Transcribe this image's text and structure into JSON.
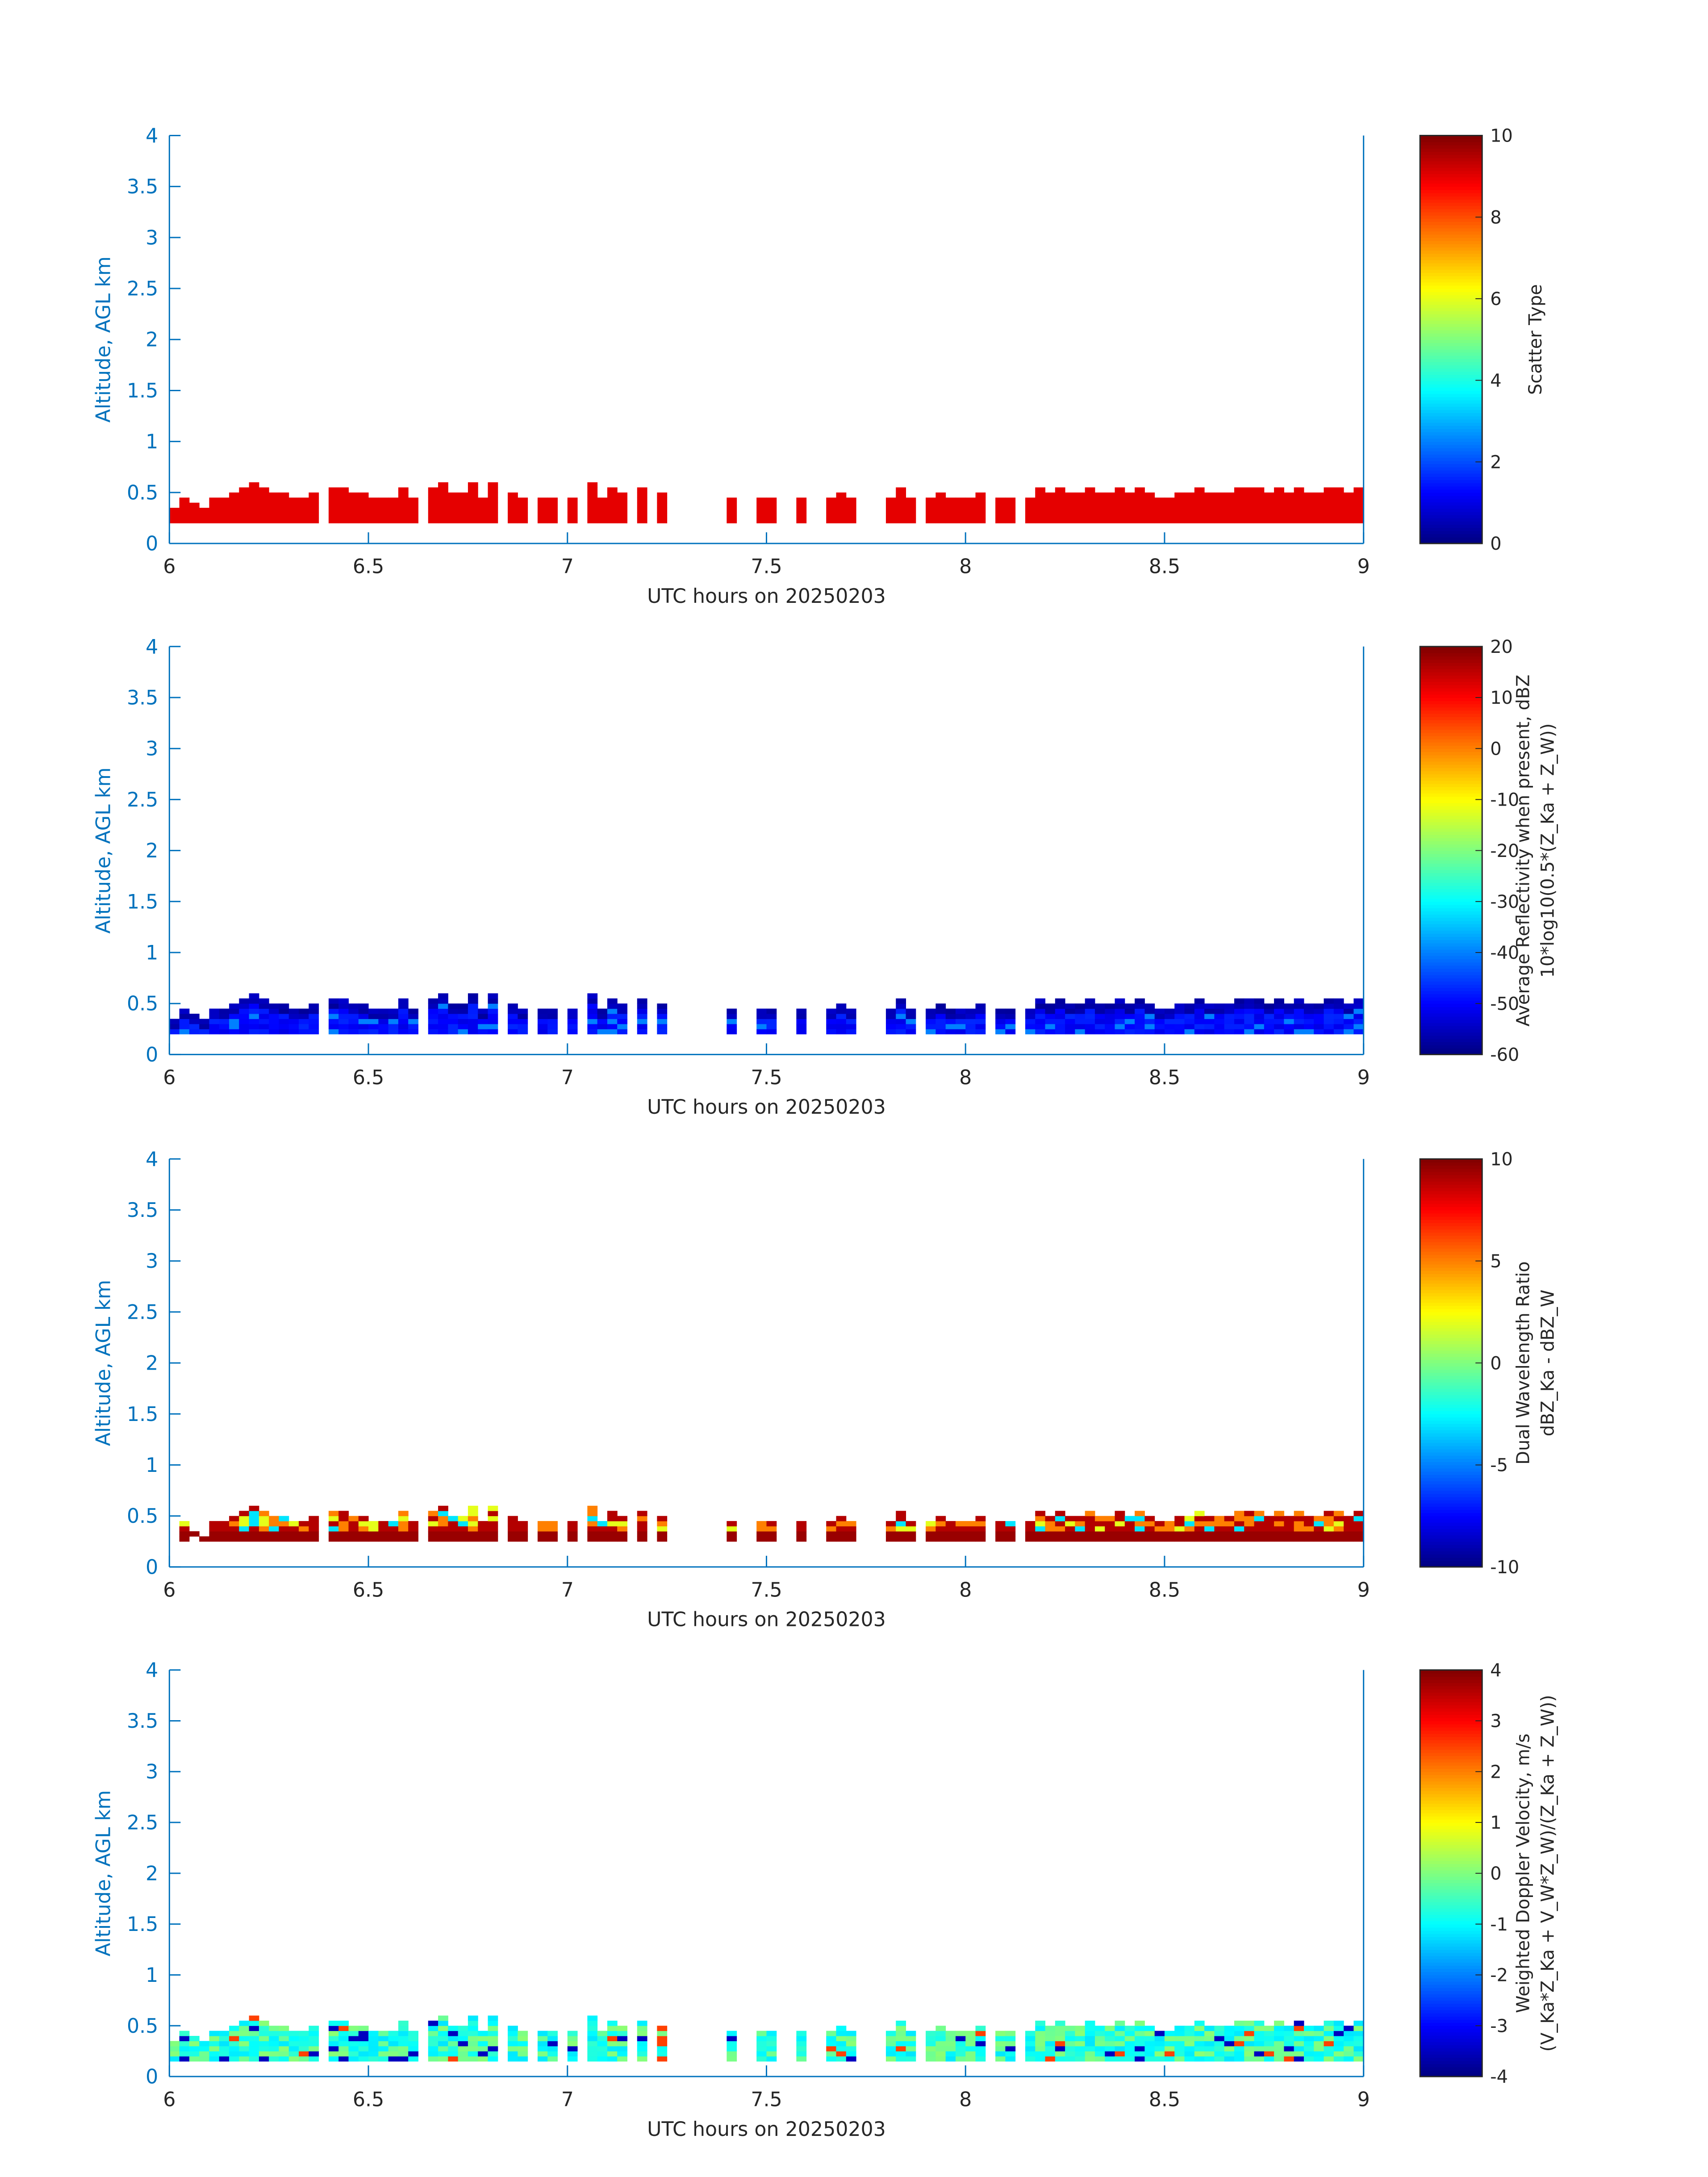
{
  "figure": {
    "axis_color": "#0072BD",
    "colorbar_text_color": "#262626",
    "xlabel": "UTC hours on 20250203",
    "ylabel": "Altitude, AGL km"
  },
  "chart_data": [
    {
      "type": "heatmap",
      "title": "",
      "xlabel": "UTC hours on 20250203",
      "ylabel": "Altitude, AGL km",
      "xlim": [
        6,
        9
      ],
      "ylim": [
        0,
        4
      ],
      "xticks": [
        6,
        6.5,
        7,
        7.5,
        8,
        8.5,
        9
      ],
      "xticklabels": [
        "6",
        "6.5",
        "7",
        "7.5",
        "8",
        "8.5",
        "9"
      ],
      "yticks": [
        0,
        0.5,
        1,
        1.5,
        2,
        2.5,
        3,
        3.5,
        4
      ],
      "yticklabels": [
        "0",
        "0.5",
        "1",
        "1.5",
        "2",
        "2.5",
        "3",
        "3.5",
        "4"
      ],
      "colormap": "jet",
      "clim": [
        0,
        10
      ],
      "colorbar": {
        "label_lines": [
          "Scatter Type"
        ],
        "ticks": [
          0,
          2,
          4,
          6,
          8,
          10
        ],
        "ticklabels": [
          "0",
          "2",
          "4",
          "6",
          "8",
          "10"
        ]
      },
      "field_summary": "constant value 9 in echo bins between ~0.2 and ~0.55 km",
      "field_value": 9,
      "value_range": [
        9,
        9
      ],
      "echo_base_km": 0.2
    },
    {
      "type": "heatmap",
      "title": "",
      "xlabel": "UTC hours on 20250203",
      "ylabel": "Altitude, AGL km",
      "xlim": [
        6,
        9
      ],
      "ylim": [
        0,
        4
      ],
      "xticks": [
        6,
        6.5,
        7,
        7.5,
        8,
        8.5,
        9
      ],
      "xticklabels": [
        "6",
        "6.5",
        "7",
        "7.5",
        "8",
        "8.5",
        "9"
      ],
      "yticks": [
        0,
        0.5,
        1,
        1.5,
        2,
        2.5,
        3,
        3.5,
        4
      ],
      "yticklabels": [
        "0",
        "0.5",
        "1",
        "1.5",
        "2",
        "2.5",
        "3",
        "3.5",
        "4"
      ],
      "colormap": "jet",
      "clim": [
        -60,
        20
      ],
      "colorbar": {
        "label_lines": [
          "Average Reflectivity when present, dBZ",
          "10*log10(0.5*(Z_Ka + Z_W))"
        ],
        "ticks": [
          -60,
          -50,
          -40,
          -30,
          -20,
          -10,
          0,
          10,
          20
        ],
        "ticklabels": [
          "-60",
          "-50",
          "-40",
          "-30",
          "-20",
          "-10",
          "0",
          "10",
          "20"
        ]
      },
      "value_range": [
        -60,
        -38
      ],
      "echo_base_km": 0.2
    },
    {
      "type": "heatmap",
      "title": "",
      "xlabel": "UTC hours on 20250203",
      "ylabel": "Altitude, AGL km",
      "xlim": [
        6,
        9
      ],
      "ylim": [
        0,
        4
      ],
      "xticks": [
        6,
        6.5,
        7,
        7.5,
        8,
        8.5,
        9
      ],
      "xticklabels": [
        "6",
        "6.5",
        "7",
        "7.5",
        "8",
        "8.5",
        "9"
      ],
      "yticks": [
        0,
        0.5,
        1,
        1.5,
        2,
        2.5,
        3,
        3.5,
        4
      ],
      "yticklabels": [
        "0",
        "0.5",
        "1",
        "1.5",
        "2",
        "2.5",
        "3",
        "3.5",
        "4"
      ],
      "colormap": "jet",
      "clim": [
        -10,
        10
      ],
      "colorbar": {
        "label_lines": [
          "Dual Wavelength Ratio",
          "dBZ_Ka - dBZ_W"
        ],
        "ticks": [
          -10,
          -5,
          0,
          5,
          10
        ],
        "ticklabels": [
          "-10",
          "-5",
          "0",
          "5",
          "10"
        ]
      },
      "value_range": [
        -3,
        10
      ],
      "echo_base_km": 0.25
    },
    {
      "type": "heatmap",
      "title": "",
      "xlabel": "UTC hours on 20250203",
      "ylabel": "Altitude, AGL km",
      "xlim": [
        6,
        9
      ],
      "ylim": [
        0,
        4
      ],
      "xticks": [
        6,
        6.5,
        7,
        7.5,
        8,
        8.5,
        9
      ],
      "xticklabels": [
        "6",
        "6.5",
        "7",
        "7.5",
        "8",
        "8.5",
        "9"
      ],
      "yticks": [
        0,
        0.5,
        1,
        1.5,
        2,
        2.5,
        3,
        3.5,
        4
      ],
      "yticklabels": [
        "0",
        "0.5",
        "1",
        "1.5",
        "2",
        "2.5",
        "3",
        "3.5",
        "4"
      ],
      "colormap": "jet",
      "clim": [
        -4,
        4
      ],
      "colorbar": {
        "label_lines": [
          "Weighted Doppler Velocity, m/s",
          "(V_Ka*Z_Ka + V_W*Z_W)/(Z_Ka + Z_W))"
        ],
        "ticks": [
          -4,
          -3,
          -2,
          -1,
          0,
          1,
          2,
          3,
          4
        ],
        "ticklabels": [
          "-4",
          "-3",
          "-2",
          "-1",
          "0",
          "1",
          "2",
          "3",
          "4"
        ]
      },
      "value_range": [
        -4,
        3
      ],
      "echo_base_km": 0.15
    }
  ],
  "echo_top_km": {
    "t_start": 6,
    "t_step": 0.025,
    "top": [
      0.35,
      0.45,
      0.4,
      0.35,
      0.45,
      0.45,
      0.5,
      0.55,
      0.6,
      0.55,
      0.5,
      0.5,
      0.45,
      0.45,
      0.5,
      0.0,
      0.55,
      0.55,
      0.5,
      0.5,
      0.45,
      0.45,
      0.45,
      0.55,
      0.45,
      0.0,
      0.55,
      0.6,
      0.5,
      0.5,
      0.6,
      0.45,
      0.6,
      0.0,
      0.5,
      0.45,
      0.0,
      0.45,
      0.45,
      0.0,
      0.45,
      0.0,
      0.6,
      0.45,
      0.55,
      0.5,
      0.0,
      0.55,
      0.0,
      0.5,
      0.0,
      0.0,
      0.0,
      0.0,
      0.0,
      0.0,
      0.45,
      0.0,
      0.0,
      0.45,
      0.45,
      0.0,
      0.0,
      0.45,
      0.0,
      0.0,
      0.45,
      0.5,
      0.45,
      0.0,
      0.0,
      0.0,
      0.45,
      0.55,
      0.45,
      0.0,
      0.45,
      0.5,
      0.45,
      0.45,
      0.45,
      0.5,
      0.0,
      0.45,
      0.45,
      0.0,
      0.45,
      0.55,
      0.5,
      0.55,
      0.5,
      0.5,
      0.55,
      0.5,
      0.5,
      0.55,
      0.5,
      0.55,
      0.5,
      0.45,
      0.45,
      0.5,
      0.5,
      0.55,
      0.5,
      0.5,
      0.5,
      0.55,
      0.55,
      0.55,
      0.5,
      0.55,
      0.5,
      0.55,
      0.5,
      0.5,
      0.55,
      0.55,
      0.5,
      0.55
    ],
    "note": "echo column heights per time bin, 0 = no echo"
  }
}
